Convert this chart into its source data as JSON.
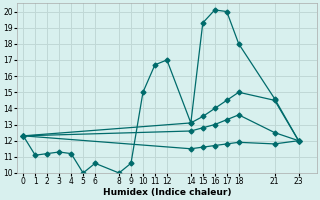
{
  "xlabel": "Humidex (Indice chaleur)",
  "bg_color": "#d8f0ee",
  "grid_color": "#c0d8d6",
  "line_color": "#006b6b",
  "ylim": [
    10,
    20.5
  ],
  "xlim": [
    -0.5,
    24.5
  ],
  "yticks": [
    10,
    11,
    12,
    13,
    14,
    15,
    16,
    17,
    18,
    19,
    20
  ],
  "xticks": [
    0,
    1,
    2,
    3,
    4,
    5,
    6,
    8,
    9,
    10,
    11,
    12,
    14,
    15,
    16,
    17,
    18,
    21,
    23
  ],
  "series": [
    {
      "x": [
        0,
        1,
        2,
        3,
        4,
        5,
        6,
        8,
        9,
        10,
        11,
        12,
        14,
        15,
        16,
        17,
        18,
        21,
        23
      ],
      "y": [
        12.3,
        11.1,
        11.2,
        11.3,
        11.2,
        10.0,
        10.6,
        10.0,
        10.6,
        15.0,
        16.7,
        17.0,
        13.1,
        19.3,
        20.1,
        20.0,
        18.0,
        14.6,
        12.0
      ]
    },
    {
      "x": [
        0,
        23
      ],
      "y": [
        12.3,
        12.0
      ]
    },
    {
      "x": [
        0,
        21,
        23
      ],
      "y": [
        12.3,
        14.5,
        12.0
      ]
    },
    {
      "x": [
        0,
        23
      ],
      "y": [
        12.3,
        12.0
      ]
    }
  ],
  "smooth_series": [
    {
      "x": [
        0,
        14,
        15,
        16,
        17,
        18,
        21,
        23
      ],
      "y": [
        12.3,
        13.1,
        13.5,
        14.0,
        14.5,
        15.0,
        14.5,
        12.0
      ]
    },
    {
      "x": [
        0,
        14,
        15,
        16,
        17,
        18,
        21,
        23
      ],
      "y": [
        12.3,
        12.6,
        12.8,
        13.0,
        13.3,
        13.6,
        12.5,
        12.0
      ]
    },
    {
      "x": [
        0,
        14,
        15,
        16,
        17,
        18,
        21,
        23
      ],
      "y": [
        12.3,
        11.5,
        11.6,
        11.7,
        11.8,
        11.9,
        11.8,
        12.0
      ]
    }
  ]
}
